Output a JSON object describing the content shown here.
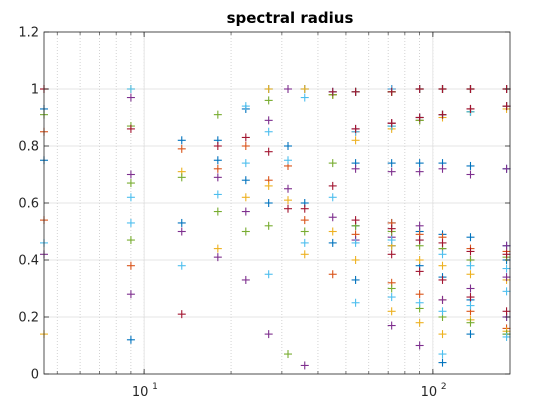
{
  "chart_data": {
    "type": "scatter",
    "title": "spectral radius",
    "xlabel": "",
    "ylabel": "",
    "xscale": "log",
    "xlim": [
      4.5,
      185
    ],
    "ylim": [
      0,
      1.2
    ],
    "grid": true,
    "minor_grid_x": true,
    "marker": "+",
    "x_ticks": [
      {
        "value": 10,
        "label_base": "10",
        "label_exp": "1"
      },
      {
        "value": 100,
        "label_base": "10",
        "label_exp": "2"
      }
    ],
    "y_ticks": [
      {
        "value": 0,
        "label": "0"
      },
      {
        "value": 0.2,
        "label": "0.2"
      },
      {
        "value": 0.4,
        "label": "0.4"
      },
      {
        "value": 0.6,
        "label": "0.6"
      },
      {
        "value": 0.8,
        "label": "0.8"
      },
      {
        "value": 1,
        "label": "1"
      },
      {
        "value": 1.2,
        "label": "1.2"
      }
    ],
    "series": [
      {
        "color": "#0072bd",
        "points": [
          [
            4.5,
            0.93
          ],
          [
            4.5,
            0.75
          ],
          [
            9,
            0.12
          ],
          [
            13.5,
            0.82
          ],
          [
            13.5,
            0.53
          ],
          [
            18,
            0.82
          ],
          [
            18,
            0.75
          ],
          [
            22.5,
            0.93
          ],
          [
            22.5,
            0.68
          ],
          [
            27,
            1.0
          ],
          [
            27,
            0.6
          ],
          [
            31.5,
            0.8
          ],
          [
            36,
            1.0
          ],
          [
            36,
            0.6
          ],
          [
            45,
            0.98
          ],
          [
            45,
            0.46
          ],
          [
            54,
            0.99
          ],
          [
            54,
            0.74
          ],
          [
            54,
            0.52
          ],
          [
            54,
            0.33
          ],
          [
            72,
            0.99
          ],
          [
            72,
            0.87
          ],
          [
            72,
            0.74
          ],
          [
            72,
            0.53
          ],
          [
            72,
            0.45
          ],
          [
            90,
            1.0
          ],
          [
            90,
            0.89
          ],
          [
            90,
            0.74
          ],
          [
            90,
            0.5
          ],
          [
            90,
            0.38
          ],
          [
            108,
            1.0
          ],
          [
            108,
            0.91
          ],
          [
            108,
            0.74
          ],
          [
            108,
            0.49
          ],
          [
            108,
            0.34
          ],
          [
            108,
            0.04
          ],
          [
            135,
            1.0
          ],
          [
            135,
            0.92
          ],
          [
            135,
            0.73
          ],
          [
            135,
            0.48
          ],
          [
            135,
            0.26
          ],
          [
            135,
            0.14
          ],
          [
            180,
            1.0
          ],
          [
            180,
            0.94
          ],
          [
            180,
            0.72
          ],
          [
            180,
            0.45
          ],
          [
            180,
            0.4
          ],
          [
            180,
            0.2
          ],
          [
            180,
            0.14
          ]
        ]
      },
      {
        "color": "#d95319",
        "points": [
          [
            4.5,
            1.0
          ],
          [
            4.5,
            0.85
          ],
          [
            4.5,
            0.54
          ],
          [
            9,
            0.38
          ],
          [
            13.5,
            0.79
          ],
          [
            18,
            0.72
          ],
          [
            22.5,
            0.8
          ],
          [
            27,
            0.68
          ],
          [
            31.5,
            0.73
          ],
          [
            36,
            0.54
          ],
          [
            45,
            0.98
          ],
          [
            45,
            0.35
          ],
          [
            54,
            0.99
          ],
          [
            54,
            0.85
          ],
          [
            54,
            0.49
          ],
          [
            72,
            1.0
          ],
          [
            72,
            0.88
          ],
          [
            72,
            0.53
          ],
          [
            72,
            0.32
          ],
          [
            90,
            1.0
          ],
          [
            90,
            0.9
          ],
          [
            90,
            0.49
          ],
          [
            90,
            0.28
          ],
          [
            108,
            1.0
          ],
          [
            108,
            0.91
          ],
          [
            108,
            0.48
          ],
          [
            108,
            0.26
          ],
          [
            135,
            1.0
          ],
          [
            135,
            0.93
          ],
          [
            135,
            0.44
          ],
          [
            135,
            0.22
          ],
          [
            180,
            1.0
          ],
          [
            180,
            0.94
          ],
          [
            180,
            0.43
          ],
          [
            180,
            0.16
          ]
        ]
      },
      {
        "color": "#edb120",
        "points": [
          [
            4.5,
            0.14
          ],
          [
            9,
            1.0
          ],
          [
            13.5,
            0.71
          ],
          [
            18,
            0.44
          ],
          [
            22.5,
            0.62
          ],
          [
            27,
            1.0
          ],
          [
            27,
            0.66
          ],
          [
            31.5,
            0.61
          ],
          [
            36,
            1.0
          ],
          [
            36,
            0.42
          ],
          [
            45,
            0.98
          ],
          [
            45,
            0.5
          ],
          [
            54,
            0.99
          ],
          [
            54,
            0.82
          ],
          [
            54,
            0.4
          ],
          [
            72,
            0.99
          ],
          [
            72,
            0.86
          ],
          [
            72,
            0.45
          ],
          [
            72,
            0.22
          ],
          [
            90,
            1.0
          ],
          [
            90,
            0.89
          ],
          [
            90,
            0.4
          ],
          [
            90,
            0.18
          ],
          [
            108,
            1.0
          ],
          [
            108,
            0.9
          ],
          [
            108,
            0.38
          ],
          [
            108,
            0.14
          ],
          [
            135,
            1.0
          ],
          [
            135,
            0.92
          ],
          [
            135,
            0.35
          ],
          [
            135,
            0.19
          ],
          [
            180,
            1.0
          ],
          [
            180,
            0.93
          ],
          [
            180,
            0.33
          ],
          [
            180,
            0.15
          ]
        ]
      },
      {
        "color": "#7e2f8e",
        "points": [
          [
            4.5,
            0.42
          ],
          [
            9,
            0.97
          ],
          [
            9,
            0.7
          ],
          [
            9,
            0.28
          ],
          [
            13.5,
            0.5
          ],
          [
            18,
            0.69
          ],
          [
            18,
            0.41
          ],
          [
            22.5,
            0.57
          ],
          [
            22.5,
            0.33
          ],
          [
            27,
            0.89
          ],
          [
            27,
            0.14
          ],
          [
            31.5,
            1.0
          ],
          [
            31.5,
            0.65
          ],
          [
            36,
            0.03
          ],
          [
            45,
            0.99
          ],
          [
            45,
            0.55
          ],
          [
            54,
            0.99
          ],
          [
            54,
            0.86
          ],
          [
            54,
            0.72
          ],
          [
            54,
            0.47
          ],
          [
            72,
            1.0
          ],
          [
            72,
            0.88
          ],
          [
            72,
            0.71
          ],
          [
            72,
            0.48
          ],
          [
            72,
            0.17
          ],
          [
            90,
            1.0
          ],
          [
            90,
            0.9
          ],
          [
            90,
            0.71
          ],
          [
            90,
            0.52
          ],
          [
            90,
            0.1
          ],
          [
            108,
            1.0
          ],
          [
            108,
            0.91
          ],
          [
            108,
            0.72
          ],
          [
            108,
            0.44
          ],
          [
            108,
            0.26
          ],
          [
            135,
            1.0
          ],
          [
            135,
            0.93
          ],
          [
            135,
            0.7
          ],
          [
            135,
            0.4
          ],
          [
            135,
            0.3
          ],
          [
            180,
            1.0
          ],
          [
            180,
            0.94
          ],
          [
            180,
            0.72
          ],
          [
            180,
            0.45
          ],
          [
            180,
            0.34
          ],
          [
            180,
            0.2
          ]
        ]
      },
      {
        "color": "#77ac30",
        "points": [
          [
            4.5,
            0.91
          ],
          [
            9,
            0.87
          ],
          [
            9,
            0.67
          ],
          [
            9,
            0.47
          ],
          [
            13.5,
            0.69
          ],
          [
            18,
            0.91
          ],
          [
            18,
            0.57
          ],
          [
            22.5,
            0.5
          ],
          [
            27,
            0.96
          ],
          [
            27,
            0.52
          ],
          [
            31.5,
            0.07
          ],
          [
            36,
            0.5
          ],
          [
            45,
            0.98
          ],
          [
            45,
            0.74
          ],
          [
            54,
            0.99
          ],
          [
            54,
            0.52
          ],
          [
            72,
            0.99
          ],
          [
            72,
            0.87
          ],
          [
            72,
            0.5
          ],
          [
            72,
            0.3
          ],
          [
            90,
            1.0
          ],
          [
            90,
            0.89
          ],
          [
            90,
            0.45
          ],
          [
            90,
            0.23
          ],
          [
            108,
            1.0
          ],
          [
            108,
            0.91
          ],
          [
            108,
            0.44
          ],
          [
            108,
            0.2
          ],
          [
            135,
            1.0
          ],
          [
            135,
            0.92
          ],
          [
            135,
            0.4
          ],
          [
            135,
            0.18
          ],
          [
            180,
            1.0
          ],
          [
            180,
            0.94
          ],
          [
            180,
            0.41
          ],
          [
            180,
            0.14
          ]
        ]
      },
      {
        "color": "#4dbeee",
        "points": [
          [
            4.5,
            0.46
          ],
          [
            9,
            1.0
          ],
          [
            9,
            0.62
          ],
          [
            9,
            0.53
          ],
          [
            13.5,
            0.38
          ],
          [
            18,
            0.63
          ],
          [
            22.5,
            0.94
          ],
          [
            22.5,
            0.74
          ],
          [
            27,
            0.85
          ],
          [
            27,
            0.35
          ],
          [
            31.5,
            0.75
          ],
          [
            36,
            0.97
          ],
          [
            36,
            0.46
          ],
          [
            45,
            0.99
          ],
          [
            45,
            0.62
          ],
          [
            54,
            0.99
          ],
          [
            54,
            0.85
          ],
          [
            54,
            0.46
          ],
          [
            54,
            0.25
          ],
          [
            72,
            1.0
          ],
          [
            72,
            0.87
          ],
          [
            72,
            0.47
          ],
          [
            72,
            0.27
          ],
          [
            90,
            1.0
          ],
          [
            90,
            0.9
          ],
          [
            90,
            0.47
          ],
          [
            90,
            0.25
          ],
          [
            108,
            1.0
          ],
          [
            108,
            0.91
          ],
          [
            108,
            0.42
          ],
          [
            108,
            0.22
          ],
          [
            108,
            0.07
          ],
          [
            135,
            1.0
          ],
          [
            135,
            0.92
          ],
          [
            135,
            0.38
          ],
          [
            135,
            0.24
          ],
          [
            180,
            1.0
          ],
          [
            180,
            0.94
          ],
          [
            180,
            0.37
          ],
          [
            180,
            0.29
          ],
          [
            180,
            0.13
          ]
        ]
      },
      {
        "color": "#a2142f",
        "points": [
          [
            4.5,
            1.0
          ],
          [
            9,
            0.86
          ],
          [
            13.5,
            0.21
          ],
          [
            18,
            0.8
          ],
          [
            22.5,
            0.83
          ],
          [
            27,
            0.78
          ],
          [
            31.5,
            0.58
          ],
          [
            36,
            0.58
          ],
          [
            45,
            0.99
          ],
          [
            45,
            0.66
          ],
          [
            54,
            0.99
          ],
          [
            54,
            0.86
          ],
          [
            54,
            0.54
          ],
          [
            72,
            0.99
          ],
          [
            72,
            0.88
          ],
          [
            72,
            0.51
          ],
          [
            72,
            0.42
          ],
          [
            90,
            1.0
          ],
          [
            90,
            0.9
          ],
          [
            90,
            0.47
          ],
          [
            90,
            0.36
          ],
          [
            108,
            1.0
          ],
          [
            108,
            0.91
          ],
          [
            108,
            0.46
          ],
          [
            108,
            0.33
          ],
          [
            135,
            1.0
          ],
          [
            135,
            0.93
          ],
          [
            135,
            0.43
          ],
          [
            135,
            0.27
          ],
          [
            180,
            1.0
          ],
          [
            180,
            0.94
          ],
          [
            180,
            0.42
          ],
          [
            180,
            0.22
          ]
        ]
      }
    ]
  }
}
